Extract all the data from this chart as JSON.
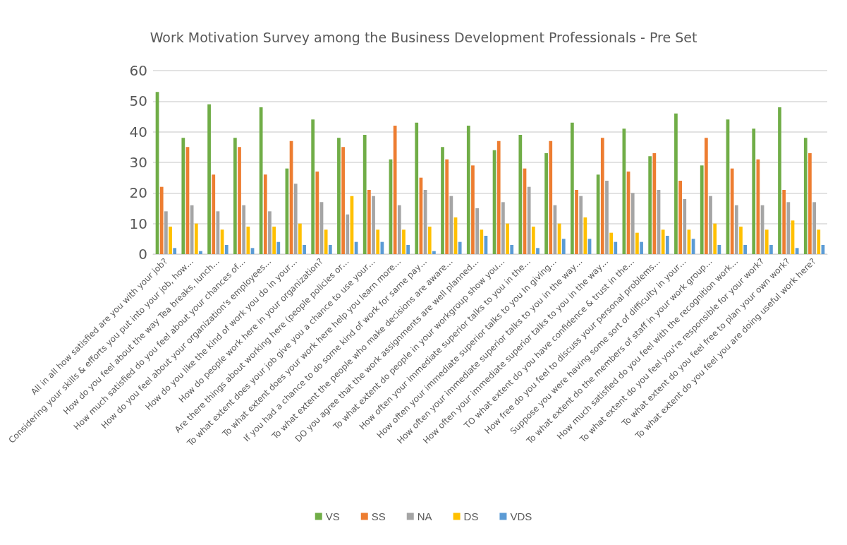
{
  "chart_data": {
    "type": "bar",
    "title": "Work Motivation Survey among the Business Development Professionals - Pre Set",
    "categories": [
      "All in all how satisfied are you with your job?",
      "Considering your skills & efforts you put into your job, how…",
      "How do you feel about the way Tea breaks, lunch…",
      "How much satisfied do you feel about your chances of…",
      "How do you feel about your organization's employees…",
      "How do you like the kind of work you do in your…",
      "How do people work here in your organization?",
      "Are there things about working here (people policies or…",
      "To what extent does your job give you a chance to use your…",
      "To what extent does your work here help you learn more…",
      "If you had a chance to do some kind of work for same pay…",
      "To what extent the people who make decisions are aware…",
      "DO you agree that the work assignments are well planned…",
      "To what extent do people in your workgroup show you…",
      "How often your immediate superior talks to you in the…",
      "How often your immediate superior talks to you In giving…",
      "How often your immediate superior talks to you in the way…",
      "How often your immediate superior talks to you in the way…",
      "TO what extent do you have confidence & trust in the…",
      "How free do you feel to discuss your personal problems…",
      "Suppose you were having some sort of difficulty in your…",
      "To what extent do the members of staff in your work group…",
      "How much satisfied do you feel with the recognition work…",
      "To what extent do you feel you're responsible for your work?",
      "To what extent do you feel free to plan your own work?",
      "To what extent do you feel you are doing useful work here?"
    ],
    "series": [
      {
        "name": "VS",
        "color": "#70ad47",
        "values": [
          53,
          38,
          49,
          38,
          48,
          28,
          44,
          38,
          39,
          31,
          43,
          35,
          42,
          34,
          39,
          33,
          43,
          26,
          41,
          32,
          46,
          29,
          44,
          41,
          48,
          38
        ]
      },
      {
        "name": "SS",
        "color": "#ed7d31",
        "values": [
          22,
          35,
          26,
          35,
          26,
          37,
          27,
          35,
          21,
          42,
          25,
          31,
          29,
          37,
          28,
          37,
          21,
          38,
          27,
          33,
          24,
          38,
          28,
          31,
          21,
          33
        ]
      },
      {
        "name": "NA",
        "color": "#a5a5a5",
        "values": [
          14,
          16,
          14,
          16,
          14,
          23,
          17,
          13,
          19,
          16,
          21,
          19,
          15,
          17,
          22,
          16,
          19,
          24,
          20,
          21,
          18,
          19,
          16,
          16,
          17,
          17
        ]
      },
      {
        "name": "DS",
        "color": "#ffc000",
        "values": [
          9,
          10,
          8,
          9,
          9,
          10,
          8,
          19,
          8,
          8,
          9,
          12,
          8,
          10,
          9,
          10,
          12,
          7,
          7,
          8,
          8,
          10,
          9,
          8,
          11,
          8
        ]
      },
      {
        "name": "VDS",
        "color": "#5b9bd5",
        "values": [
          2,
          1,
          3,
          2,
          4,
          3,
          3,
          4,
          4,
          3,
          1,
          4,
          6,
          3,
          2,
          5,
          5,
          4,
          4,
          6,
          5,
          3,
          3,
          3,
          2,
          3
        ]
      }
    ],
    "ylim": [
      0,
      60
    ],
    "yticks": [
      0,
      10,
      20,
      30,
      40,
      50,
      60
    ],
    "grid": "y",
    "legend": "bottom"
  }
}
